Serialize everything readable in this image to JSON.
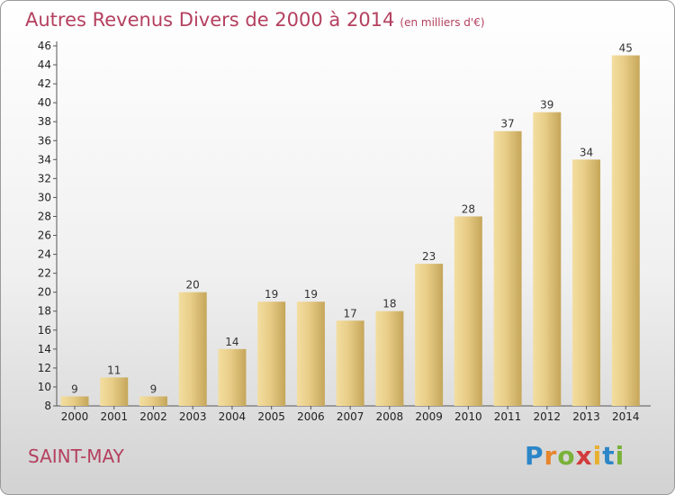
{
  "header": {
    "title": "Autres Revenus Divers de 2000 à 2014",
    "unit": "(en milliers d'€)"
  },
  "footer": {
    "location": "SAINT-MAY",
    "logo": "Proxiti"
  },
  "colors": {
    "title": "#b4405f",
    "bar_light": "#f4e2a4",
    "bar_dark": "#c8a85c"
  },
  "chart_data": {
    "type": "bar",
    "title": "Autres Revenus Divers de 2000 à 2014",
    "subtitle": "(en milliers d'€)",
    "categories": [
      "2000",
      "2001",
      "2002",
      "2003",
      "2004",
      "2005",
      "2006",
      "2007",
      "2008",
      "2009",
      "2010",
      "2011",
      "2012",
      "2013",
      "2014"
    ],
    "values": [
      9,
      11,
      9,
      20,
      14,
      19,
      19,
      17,
      18,
      23,
      28,
      37,
      39,
      34,
      45
    ],
    "ylim": [
      8,
      46
    ],
    "yticks": [
      8,
      10,
      12,
      14,
      16,
      18,
      20,
      22,
      24,
      26,
      28,
      30,
      32,
      34,
      36,
      38,
      40,
      42,
      44,
      46
    ],
    "grid": false
  }
}
